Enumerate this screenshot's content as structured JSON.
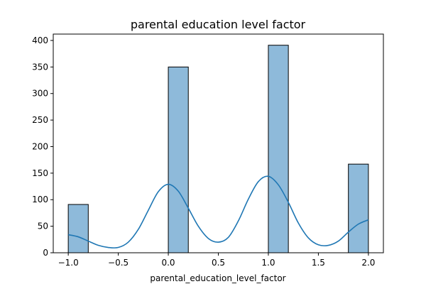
{
  "chart_data": {
    "type": "bar",
    "title": "parental education level factor",
    "xlabel": "parental_education_level_factor",
    "ylabel": "",
    "xlim": [
      -1.15,
      2.15
    ],
    "ylim": [
      0,
      412
    ],
    "xticks": [
      -1.0,
      -0.5,
      0.0,
      0.5,
      1.0,
      1.5,
      2.0
    ],
    "xtick_labels": [
      "−1.0",
      "−0.5",
      "0.0",
      "0.5",
      "1.0",
      "1.5",
      "2.0"
    ],
    "yticks": [
      0,
      50,
      100,
      150,
      200,
      250,
      300,
      350,
      400
    ],
    "ytick_labels": [
      "0",
      "50",
      "100",
      "150",
      "200",
      "250",
      "300",
      "350",
      "400"
    ],
    "bins": [
      {
        "x0": -1.0,
        "x1": -0.8,
        "value": 91
      },
      {
        "x0": 0.0,
        "x1": 0.2,
        "value": 350
      },
      {
        "x0": 1.0,
        "x1": 1.2,
        "value": 391
      },
      {
        "x0": 1.8,
        "x1": 2.0,
        "value": 167
      }
    ],
    "kde": {
      "x": [
        -1.0,
        -0.9,
        -0.8,
        -0.7,
        -0.6,
        -0.5,
        -0.4,
        -0.3,
        -0.2,
        -0.1,
        0.0,
        0.1,
        0.2,
        0.3,
        0.4,
        0.5,
        0.6,
        0.7,
        0.8,
        0.9,
        1.0,
        1.1,
        1.2,
        1.3,
        1.4,
        1.5,
        1.6,
        1.7,
        1.8,
        1.9,
        2.0
      ],
      "y": [
        34,
        30,
        22,
        14,
        10,
        10,
        20,
        44,
        80,
        115,
        129,
        116,
        84,
        50,
        27,
        20,
        29,
        60,
        101,
        134,
        144,
        128,
        95,
        56,
        28,
        15,
        14,
        22,
        39,
        54,
        62
      ]
    },
    "colors": {
      "bar_fill": "#8ebada",
      "bar_edge": "#000000",
      "kde_line": "#1f77b4"
    },
    "grid": false,
    "legend": "none"
  }
}
